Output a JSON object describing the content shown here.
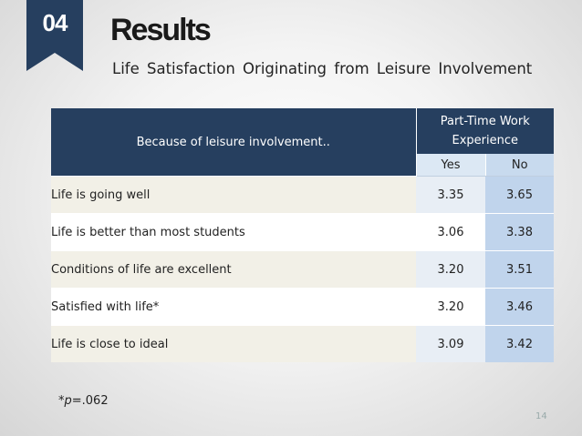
{
  "section_badge": "04",
  "title": "Results",
  "subtitle": "Life Satisfaction Originating from Leisure Involvement",
  "table": {
    "row_header": "Because of leisure involvement..",
    "group_header": "Part-Time Work Experience",
    "columns": [
      "Yes",
      "No"
    ],
    "rows": [
      {
        "label": "Life is going well",
        "yes": "3.35",
        "no": "3.65"
      },
      {
        "label": "Life is better than most students",
        "yes": "3.06",
        "no": "3.38"
      },
      {
        "label": "Conditions of life are excellent",
        "yes": "3.20",
        "no": "3.51"
      },
      {
        "label": "Satisfied with life*",
        "yes": "3.20",
        "no": "3.46"
      },
      {
        "label": "Life is close to ideal",
        "yes": "3.09",
        "no": "3.42"
      }
    ]
  },
  "footnote": {
    "prefix": "*",
    "p_symbol": "p",
    "suffix": "=.062"
  },
  "page_number": "14",
  "colors": {
    "badge": "#263f5f",
    "header": "#263f5f",
    "no_column": "#c0d4ec"
  }
}
